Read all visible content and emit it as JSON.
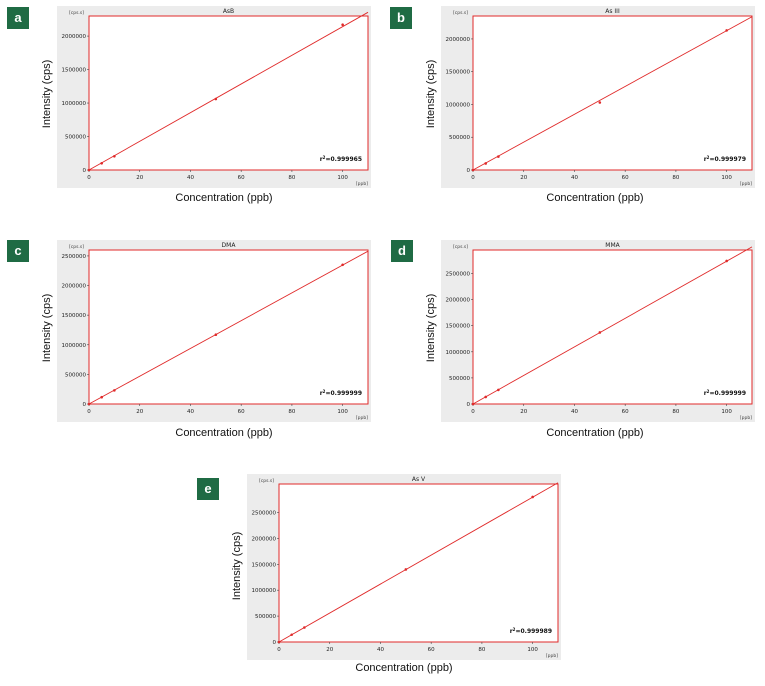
{
  "accent_color": "#1f6b44",
  "line_color": "#e02a2a",
  "chart_data": [
    {
      "panel": "a",
      "type": "scatter",
      "title": "AsB",
      "xlabel": "Concentration (ppb)",
      "ylabel": "Intensity (cps)",
      "x_unit": "[ppb]",
      "y_unit": "[cps.s]",
      "xlim": [
        0,
        110
      ],
      "ylim": [
        0,
        2300000
      ],
      "xticks": [
        "0",
        "20",
        "40",
        "60",
        "80",
        "100"
      ],
      "yticks": [
        "0",
        "500000",
        "1000000",
        "1500000",
        "2000000"
      ],
      "r2": "0.999965",
      "x": [
        0,
        5,
        10,
        50,
        100
      ],
      "y": [
        0,
        100000,
        205000,
        1060000,
        2170000
      ],
      "fit": {
        "slope": 21500,
        "intercept": -10000
      }
    },
    {
      "panel": "b",
      "type": "scatter",
      "title": "As III",
      "xlabel": "Concentration (ppb)",
      "ylabel": "Intensity (cps)",
      "x_unit": "[ppb]",
      "y_unit": "[cps.s]",
      "xlim": [
        0,
        110
      ],
      "ylim": [
        0,
        2350000
      ],
      "xticks": [
        "0",
        "20",
        "40",
        "60",
        "80",
        "100"
      ],
      "yticks": [
        "0",
        "500000",
        "1000000",
        "1500000",
        "2000000"
      ],
      "r2": "0.999979",
      "x": [
        0,
        5,
        10,
        50,
        100
      ],
      "y": [
        0,
        100000,
        205000,
        1030000,
        2130000
      ],
      "fit": {
        "slope": 21300,
        "intercept": -5000
      }
    },
    {
      "panel": "c",
      "type": "scatter",
      "title": "DMA",
      "xlabel": "Concentration (ppb)",
      "ylabel": "Intensity (cps)",
      "x_unit": "[ppb]",
      "y_unit": "[cps.s]",
      "xlim": [
        0,
        110
      ],
      "ylim": [
        0,
        2600000
      ],
      "xticks": [
        "0",
        "20",
        "40",
        "60",
        "80",
        "100"
      ],
      "yticks": [
        "0",
        "500000",
        "1000000",
        "1500000",
        "2000000",
        "2500000"
      ],
      "r2": "0.999999",
      "x": [
        0,
        5,
        10,
        50,
        100
      ],
      "y": [
        0,
        115000,
        230000,
        1170000,
        2350000
      ],
      "fit": {
        "slope": 23500,
        "intercept": -5000
      }
    },
    {
      "panel": "d",
      "type": "scatter",
      "title": "MMA",
      "xlabel": "Concentration (ppb)",
      "ylabel": "Intensity (cps)",
      "x_unit": "[ppb]",
      "y_unit": "[cps.s]",
      "xlim": [
        0,
        110
      ],
      "ylim": [
        0,
        2950000
      ],
      "xticks": [
        "0",
        "20",
        "40",
        "60",
        "80",
        "100"
      ],
      "yticks": [
        "0",
        "500000",
        "1000000",
        "1500000",
        "2000000",
        "2500000"
      ],
      "r2": "0.999999",
      "x": [
        0,
        5,
        10,
        50,
        100
      ],
      "y": [
        0,
        135000,
        270000,
        1370000,
        2740000
      ],
      "fit": {
        "slope": 27400,
        "intercept": -5000
      }
    },
    {
      "panel": "e",
      "type": "scatter",
      "title": "As V",
      "xlabel": "Concentration (ppb)",
      "ylabel": "Intensity (cps)",
      "x_unit": "[ppb]",
      "y_unit": "[cps.s]",
      "xlim": [
        0,
        110
      ],
      "ylim": [
        0,
        3050000
      ],
      "xticks": [
        "0",
        "20",
        "40",
        "60",
        "80",
        "100"
      ],
      "yticks": [
        "0",
        "500000",
        "1000000",
        "1500000",
        "2000000",
        "2500000"
      ],
      "r2": "0.999989",
      "x": [
        0,
        5,
        10,
        50,
        100
      ],
      "y": [
        0,
        140000,
        280000,
        1400000,
        2800000
      ],
      "fit": {
        "slope": 28000,
        "intercept": -5000
      }
    }
  ]
}
